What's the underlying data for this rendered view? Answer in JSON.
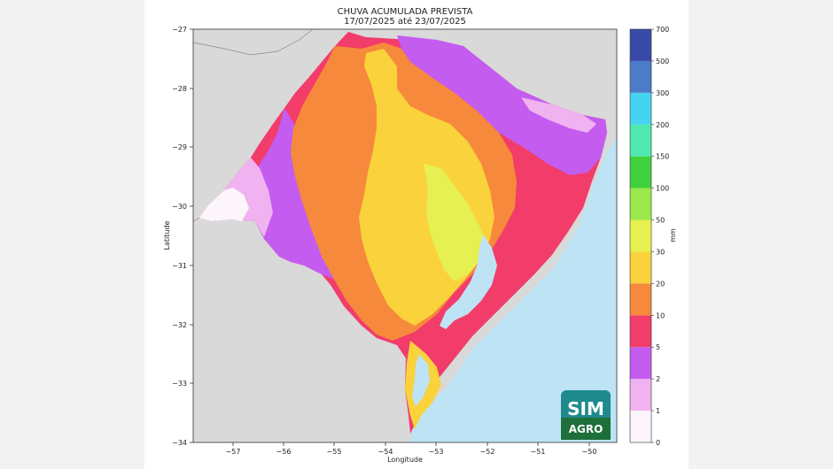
{
  "title_line1": "CHUVA ACUMULADA PREVISTA",
  "title_line2": "17/07/2025 até 23/07/2025",
  "xlabel": "Longitude",
  "ylabel": "Latitude",
  "x_ticks": [
    "−57",
    "−56",
    "−55",
    "−54",
    "−53",
    "−52",
    "−51",
    "−50"
  ],
  "y_ticks": [
    "−27",
    "−28",
    "−29",
    "−30",
    "−31",
    "−32",
    "−33",
    "−34"
  ],
  "colorbar": {
    "unit": "mm",
    "ticks": [
      "0",
      "1",
      "2",
      "5",
      "10",
      "20",
      "30",
      "50",
      "100",
      "150",
      "200",
      "300",
      "500",
      "700"
    ],
    "colors": [
      "#fdf5fc",
      "#f0b2f0",
      "#c45cf0",
      "#f23c6a",
      "#f7893c",
      "#f9d23c",
      "#e6f050",
      "#9be84a",
      "#3fd03e",
      "#4fe8b0",
      "#45d4f0",
      "#4a7cc8",
      "#3a4aa8"
    ]
  },
  "logo": {
    "line1": "SIM",
    "line2": "AGRO"
  },
  "colors": {
    "background": "#f2f2f2",
    "land_outside": "#d9d9d9",
    "ocean": "#bde3f5",
    "lagoon": "#bde3f5"
  }
}
